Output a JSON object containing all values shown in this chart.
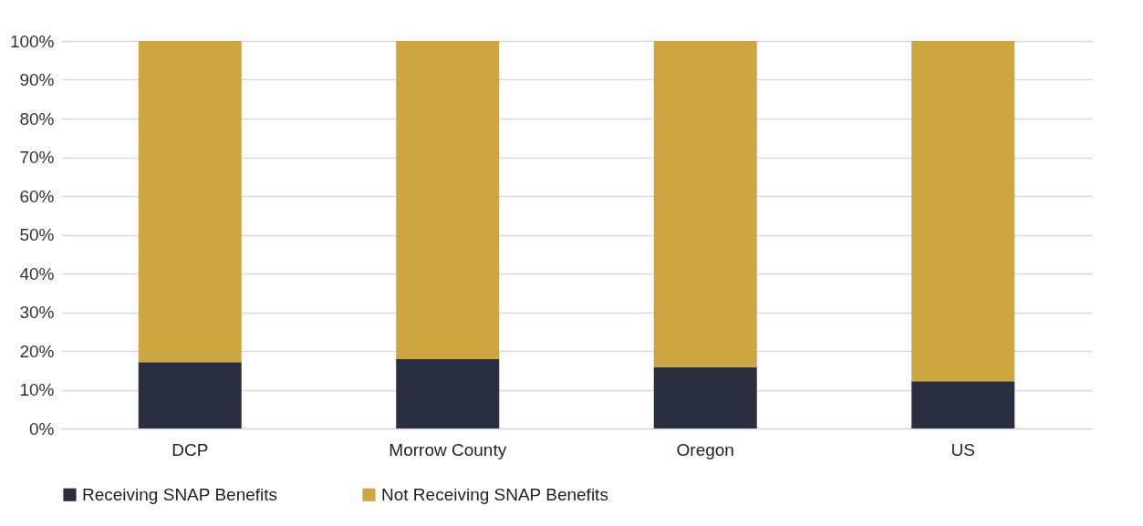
{
  "chart_data": {
    "type": "bar",
    "stacked": true,
    "categories": [
      "DCP",
      "Morrow County",
      "Oregon",
      "US"
    ],
    "series": [
      {
        "name": "Receiving SNAP Benefits",
        "color": "#2a2e3f",
        "values": [
          17.1,
          17.9,
          15.8,
          12.2
        ]
      },
      {
        "name": "Not Receiving SNAP Benefits",
        "color": "#cda641",
        "values": [
          82.9,
          82.1,
          84.2,
          87.8
        ]
      }
    ],
    "ylim": [
      0,
      100
    ],
    "yticks": [
      {
        "value": 0,
        "label": "0%"
      },
      {
        "value": 10,
        "label": "10%"
      },
      {
        "value": 20,
        "label": "20%"
      },
      {
        "value": 30,
        "label": "30%"
      },
      {
        "value": 40,
        "label": "40%"
      },
      {
        "value": 50,
        "label": "50%"
      },
      {
        "value": 60,
        "label": "60%"
      },
      {
        "value": 70,
        "label": "70%"
      },
      {
        "value": 80,
        "label": "80%"
      },
      {
        "value": 90,
        "label": "90%"
      },
      {
        "value": 100,
        "label": "100%"
      }
    ],
    "grid": "y",
    "legend": "bottom"
  }
}
